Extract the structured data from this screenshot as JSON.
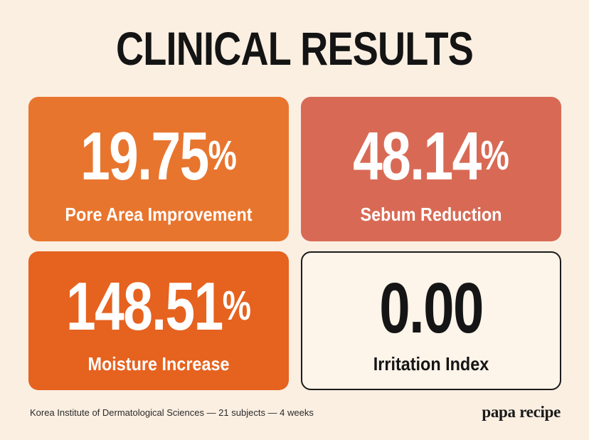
{
  "title": "CLINICAL RESULTS",
  "cards": [
    {
      "value": "19.75",
      "unit": "%",
      "label": "Pore Area Improvement",
      "color": "#e8752e"
    },
    {
      "value": "48.14",
      "unit": "%",
      "label": "Sebum Reduction",
      "color": "#d86a55"
    },
    {
      "value": "148.51",
      "unit": "%",
      "label": "Moisture Increase",
      "color": "#e6621f"
    },
    {
      "value": "0.00",
      "unit": "",
      "label": "Irritation Index",
      "color": "#fdf4ea"
    }
  ],
  "footer": {
    "source": "Korea Institute of Dermatological Sciences — 21 subjects —  4 weeks",
    "brand": "papa recipe"
  }
}
